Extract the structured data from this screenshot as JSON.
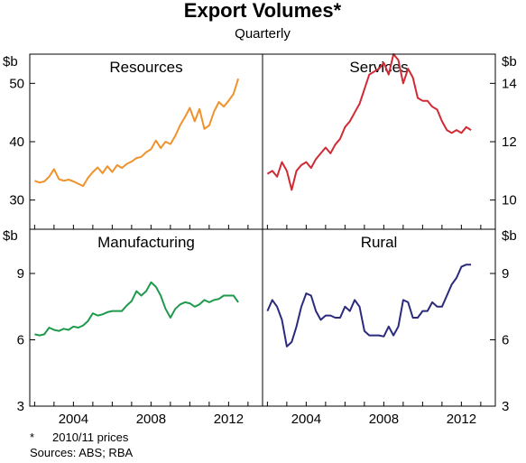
{
  "title": "Export Volumes*",
  "subtitle": "Quarterly",
  "footnote_marker": "*",
  "footnote_text": "2010/11 prices",
  "sources": "Sources: ABS; RBA",
  "unit_label": "$b",
  "x_ticks": [
    "2004",
    "2008",
    "2012"
  ],
  "chart_data": [
    {
      "type": "line",
      "title": "Resources",
      "unit": "$b",
      "color": "#f0922c",
      "ylim": [
        25,
        55
      ],
      "yticks": [
        30,
        40,
        50
      ],
      "xlim": [
        2001.75,
        2013.75
      ],
      "series": [
        {
          "x": [
            2002.0,
            2002.25,
            2002.5,
            2002.75,
            2003.0,
            2003.25,
            2003.5,
            2003.75,
            2004.0,
            2004.25,
            2004.5,
            2004.75,
            2005.0,
            2005.25,
            2005.5,
            2005.75,
            2006.0,
            2006.25,
            2006.5,
            2006.75,
            2007.0,
            2007.25,
            2007.5,
            2007.75,
            2008.0,
            2008.25,
            2008.5,
            2008.75,
            2009.0,
            2009.25,
            2009.5,
            2009.75,
            2010.0,
            2010.25,
            2010.5,
            2010.75,
            2011.0,
            2011.25,
            2011.5,
            2011.75,
            2012.0,
            2012.25,
            2012.5
          ],
          "values": [
            33.3,
            33.0,
            33.2,
            34.0,
            35.3,
            33.6,
            33.3,
            33.5,
            33.2,
            32.8,
            32.4,
            33.8,
            34.8,
            35.6,
            34.6,
            35.8,
            34.8,
            36.0,
            35.5,
            36.2,
            36.6,
            37.2,
            37.4,
            38.2,
            38.7,
            40.2,
            38.9,
            40.0,
            39.6,
            41.0,
            42.8,
            44.2,
            45.8,
            43.5,
            45.6,
            42.2,
            42.8,
            45.2,
            46.8,
            46.0,
            47.0,
            48.2,
            50.8
          ]
        }
      ]
    },
    {
      "type": "line",
      "title": "Services",
      "unit": "$b",
      "color": "#d02b35",
      "ylim": [
        9,
        15
      ],
      "yticks": [
        10,
        12,
        14
      ],
      "xlim": [
        2001.75,
        2013.75
      ],
      "series": [
        {
          "x": [
            2002.0,
            2002.25,
            2002.5,
            2002.75,
            2003.0,
            2003.25,
            2003.5,
            2003.75,
            2004.0,
            2004.25,
            2004.5,
            2004.75,
            2005.0,
            2005.25,
            2005.5,
            2005.75,
            2006.0,
            2006.25,
            2006.5,
            2006.75,
            2007.0,
            2007.25,
            2007.5,
            2007.75,
            2008.0,
            2008.25,
            2008.5,
            2008.75,
            2009.0,
            2009.25,
            2009.5,
            2009.75,
            2010.0,
            2010.25,
            2010.5,
            2010.75,
            2011.0,
            2011.25,
            2011.5,
            2011.75,
            2012.0,
            2012.25,
            2012.5
          ],
          "values": [
            10.9,
            11.0,
            10.8,
            11.3,
            11.0,
            10.35,
            11.0,
            11.2,
            11.3,
            11.1,
            11.4,
            11.6,
            11.8,
            11.6,
            11.9,
            12.1,
            12.5,
            12.7,
            13.0,
            13.3,
            13.8,
            14.3,
            14.4,
            14.5,
            14.7,
            14.3,
            15.0,
            14.8,
            14.0,
            14.5,
            14.2,
            13.5,
            13.4,
            13.4,
            13.2,
            13.1,
            12.7,
            12.4,
            12.3,
            12.4,
            12.3,
            12.5,
            12.4
          ]
        }
      ]
    },
    {
      "type": "line",
      "title": "Manufacturing",
      "unit": "$b",
      "color": "#1f9a4c",
      "ylim": [
        3,
        11
      ],
      "yticks": [
        3,
        6,
        9
      ],
      "xlim": [
        2001.75,
        2013.75
      ],
      "series": [
        {
          "x": [
            2002.0,
            2002.25,
            2002.5,
            2002.75,
            2003.0,
            2003.25,
            2003.5,
            2003.75,
            2004.0,
            2004.25,
            2004.5,
            2004.75,
            2005.0,
            2005.25,
            2005.5,
            2005.75,
            2006.0,
            2006.25,
            2006.5,
            2006.75,
            2007.0,
            2007.25,
            2007.5,
            2007.75,
            2008.0,
            2008.25,
            2008.5,
            2008.75,
            2009.0,
            2009.25,
            2009.5,
            2009.75,
            2010.0,
            2010.25,
            2010.5,
            2010.75,
            2011.0,
            2011.25,
            2011.5,
            2011.75,
            2012.0,
            2012.25,
            2012.5
          ],
          "values": [
            6.25,
            6.2,
            6.25,
            6.55,
            6.45,
            6.4,
            6.5,
            6.45,
            6.6,
            6.55,
            6.65,
            6.85,
            7.2,
            7.1,
            7.15,
            7.25,
            7.3,
            7.3,
            7.3,
            7.55,
            7.75,
            8.2,
            8.0,
            8.2,
            8.6,
            8.4,
            8.0,
            7.4,
            7.0,
            7.4,
            7.6,
            7.7,
            7.65,
            7.5,
            7.6,
            7.8,
            7.7,
            7.8,
            7.85,
            8.0,
            8.0,
            8.0,
            7.7
          ]
        }
      ]
    },
    {
      "type": "line",
      "title": "Rural",
      "unit": "$b",
      "color": "#2b2a7c",
      "ylim": [
        3,
        11
      ],
      "yticks": [
        3,
        6,
        9
      ],
      "xlim": [
        2001.75,
        2013.75
      ],
      "series": [
        {
          "x": [
            2002.0,
            2002.25,
            2002.5,
            2002.75,
            2003.0,
            2003.25,
            2003.5,
            2003.75,
            2004.0,
            2004.25,
            2004.5,
            2004.75,
            2005.0,
            2005.25,
            2005.5,
            2005.75,
            2006.0,
            2006.25,
            2006.5,
            2006.75,
            2007.0,
            2007.25,
            2007.5,
            2007.75,
            2008.0,
            2008.25,
            2008.5,
            2008.75,
            2009.0,
            2009.25,
            2009.5,
            2009.75,
            2010.0,
            2010.25,
            2010.5,
            2010.75,
            2011.0,
            2011.25,
            2011.5,
            2011.75,
            2012.0,
            2012.25,
            2012.5
          ],
          "values": [
            7.3,
            7.8,
            7.5,
            6.9,
            5.7,
            5.9,
            6.6,
            7.5,
            8.1,
            8.0,
            7.3,
            6.9,
            7.1,
            7.1,
            7.0,
            7.0,
            7.5,
            7.3,
            7.8,
            7.5,
            6.4,
            6.2,
            6.2,
            6.2,
            6.15,
            6.6,
            6.2,
            6.6,
            7.8,
            7.7,
            7.0,
            7.0,
            7.3,
            7.3,
            7.7,
            7.5,
            7.5,
            8.0,
            8.5,
            8.8,
            9.3,
            9.4,
            9.4
          ]
        }
      ]
    }
  ]
}
